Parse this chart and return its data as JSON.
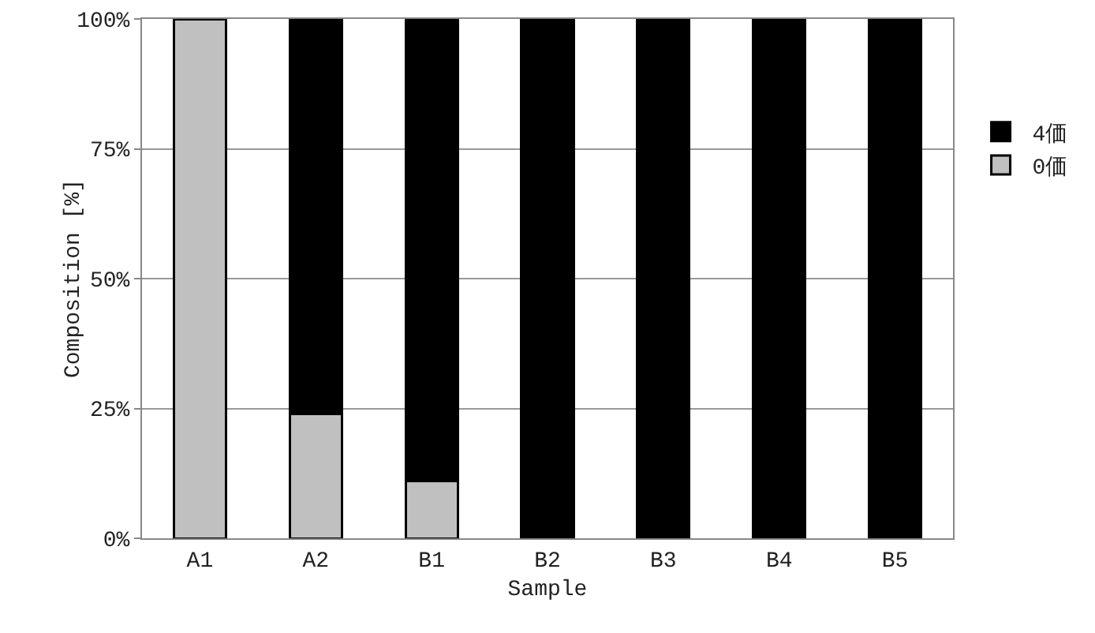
{
  "chart_data": {
    "type": "bar",
    "stacked": true,
    "xlabel": "Sample",
    "ylabel": "Composition [%]",
    "categories": [
      "A1",
      "A2",
      "B1",
      "B2",
      "B3",
      "B4",
      "B5"
    ],
    "series": [
      {
        "name": "0価",
        "color": "#c0c0c0",
        "values": [
          100,
          24,
          11,
          0,
          0,
          0,
          0
        ]
      },
      {
        "name": "4価",
        "color": "#000000",
        "values": [
          0,
          76,
          89,
          100,
          100,
          100,
          100
        ]
      }
    ],
    "ylim": [
      0,
      100
    ],
    "yticks": [
      {
        "value": 0,
        "label": "0%"
      },
      {
        "value": 25,
        "label": "25%"
      },
      {
        "value": 50,
        "label": "50%"
      },
      {
        "value": 75,
        "label": "75%"
      },
      {
        "value": 100,
        "label": "100%"
      }
    ],
    "grid": "y",
    "legend": "right"
  }
}
